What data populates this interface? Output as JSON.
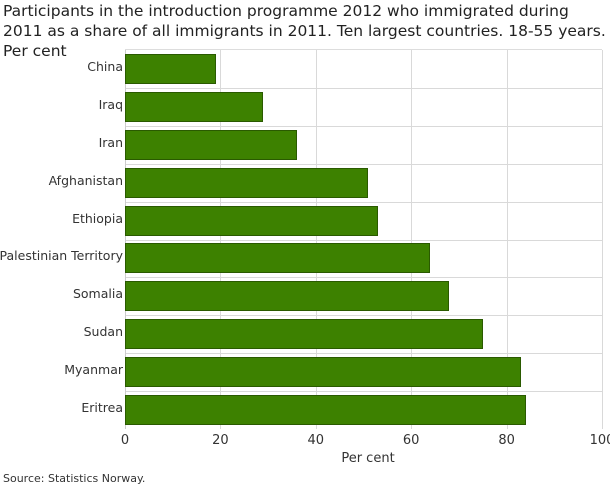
{
  "chart_data": {
    "type": "bar",
    "orientation": "horizontal",
    "title": "Participants in the introduction programme 2012 who immigrated during 2011 as a share of all immigrants in 2011. Ten largest countries. 18-55 years. Per cent",
    "categories": [
      "China",
      "Iraq",
      "Iran",
      "Afghanistan",
      "Ethiopia",
      "Palestinian Territory",
      "Somalia",
      "Sudan",
      "Myanmar",
      "Eritrea"
    ],
    "values": [
      19,
      29,
      36,
      51,
      53,
      64,
      68,
      75,
      83,
      84
    ],
    "xlabel": "Per cent",
    "ylabel": "",
    "xlim": [
      0,
      100
    ],
    "xticks": [
      "0",
      "20",
      "40",
      "60",
      "80",
      "100"
    ],
    "grid": true,
    "color": "#3d8100",
    "source": "Source: Statistics Norway."
  }
}
